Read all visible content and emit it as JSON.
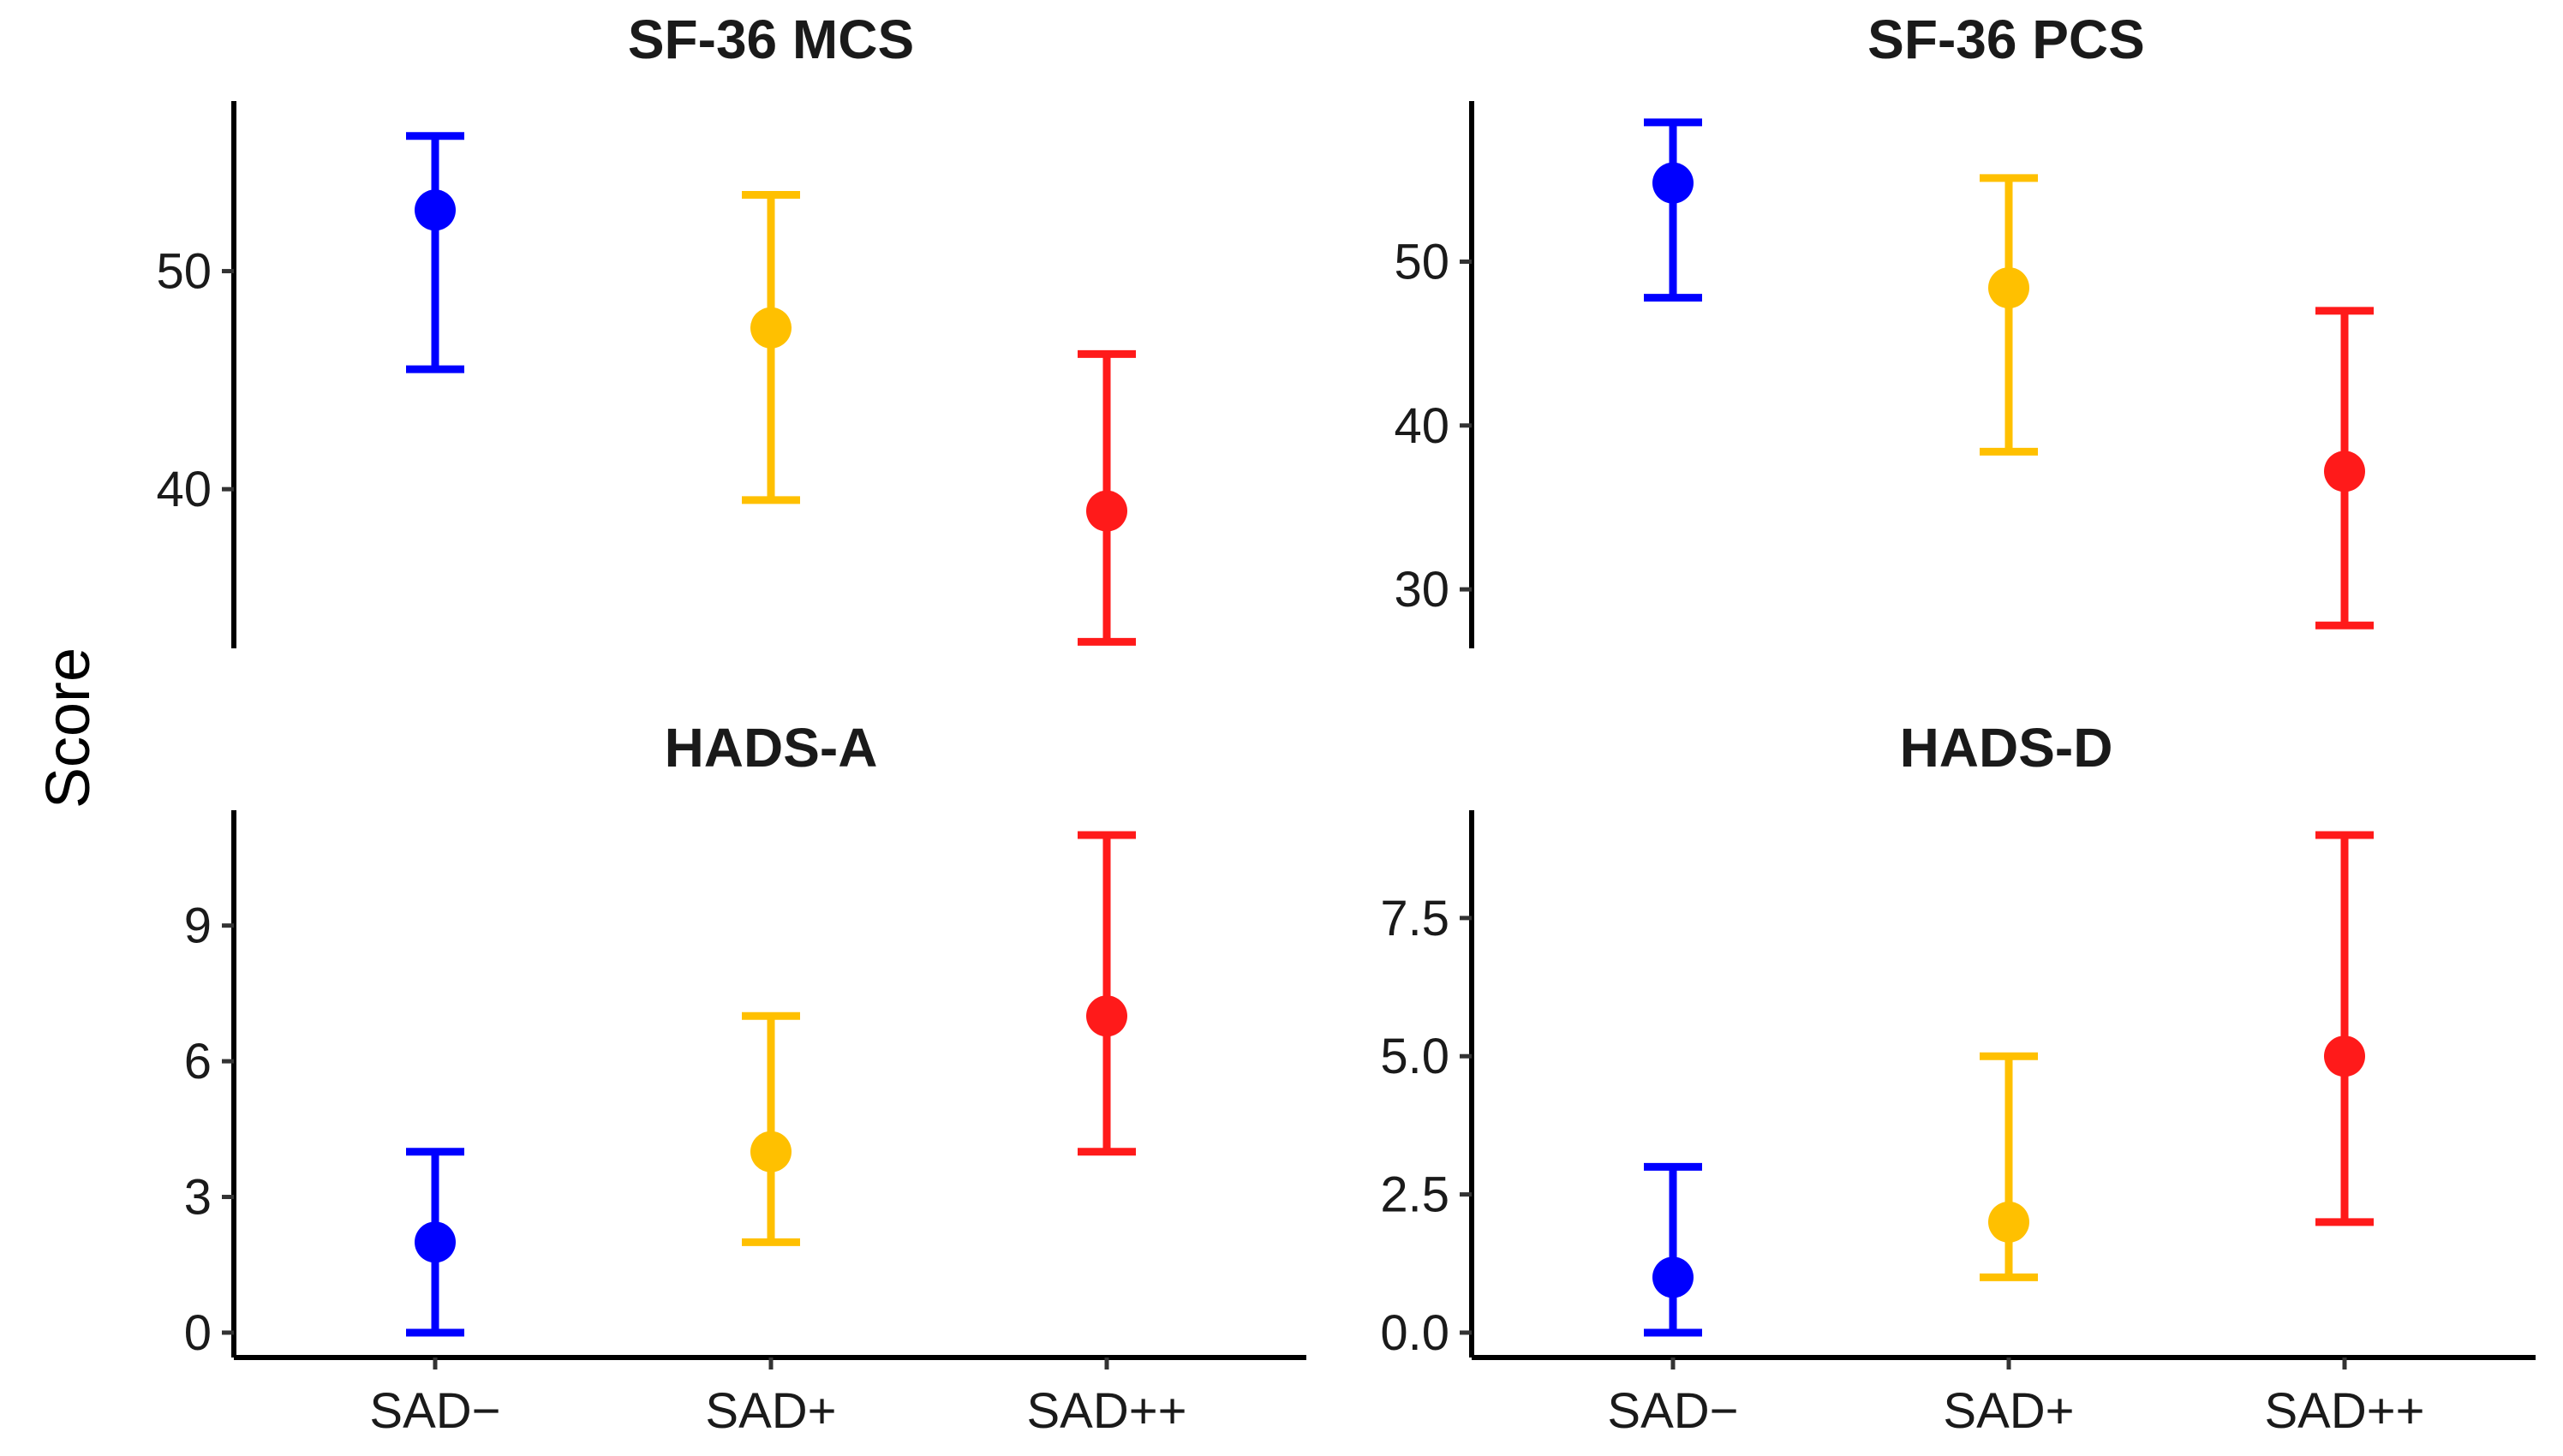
{
  "figure": {
    "ylabel": "Score"
  },
  "chart_data": [
    {
      "type": "scatter",
      "title": "SF-36 MCS",
      "categories": [
        "SAD−",
        "SAD+",
        "SAD++"
      ],
      "colors": [
        "#0000ff",
        "#ffc000",
        "#ff1a1a"
      ],
      "values": [
        52.8,
        47.4,
        39.0
      ],
      "lower": [
        45.5,
        39.5,
        33.0
      ],
      "upper": [
        56.2,
        53.5,
        46.2
      ],
      "ylim": [
        32.7,
        57.8
      ],
      "yticks": [
        40,
        50
      ],
      "ytick_labels": [
        "40",
        "50"
      ],
      "show_x_axis": false
    },
    {
      "type": "scatter",
      "title": "SF-36 PCS",
      "categories": [
        "SAD−",
        "SAD+",
        "SAD++"
      ],
      "colors": [
        "#0000ff",
        "#ffc000",
        "#ff1a1a"
      ],
      "values": [
        54.8,
        48.4,
        37.2
      ],
      "lower": [
        47.8,
        38.4,
        27.8
      ],
      "upper": [
        58.5,
        55.1,
        47.0
      ],
      "ylim": [
        26.4,
        59.8
      ],
      "yticks": [
        30,
        40,
        50
      ],
      "ytick_labels": [
        "30",
        "40",
        "50"
      ],
      "show_x_axis": false
    },
    {
      "type": "scatter",
      "title": "HADS-A",
      "categories": [
        "SAD−",
        "SAD+",
        "SAD++"
      ],
      "colors": [
        "#0000ff",
        "#ffc000",
        "#ff1a1a"
      ],
      "values": [
        2,
        4,
        7
      ],
      "lower": [
        0,
        2,
        4
      ],
      "upper": [
        4,
        7,
        11
      ],
      "ylim": [
        -0.55,
        11.55
      ],
      "yticks": [
        0,
        3,
        6,
        9
      ],
      "ytick_labels": [
        "0",
        "3",
        "6",
        "9"
      ],
      "show_x_axis": true
    },
    {
      "type": "scatter",
      "title": "HADS-D",
      "categories": [
        "SAD−",
        "SAD+",
        "SAD++"
      ],
      "colors": [
        "#0000ff",
        "#ffc000",
        "#ff1a1a"
      ],
      "values": [
        1,
        2,
        5
      ],
      "lower": [
        0,
        1,
        2
      ],
      "upper": [
        3,
        5,
        9
      ],
      "ylim": [
        -0.45,
        9.45
      ],
      "yticks": [
        0,
        2.5,
        5,
        7.5
      ],
      "ytick_labels": [
        "0.0",
        "2.5",
        "5.0",
        "7.5"
      ],
      "show_x_axis": true
    }
  ]
}
